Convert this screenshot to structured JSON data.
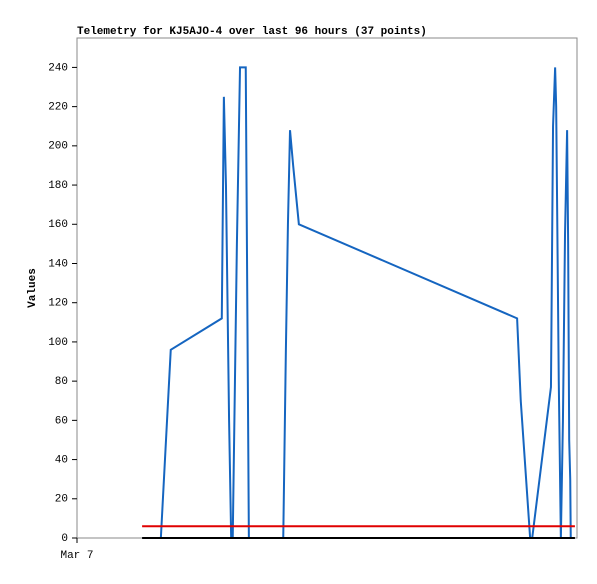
{
  "chart_data": {
    "type": "line",
    "title": "Telemetry for KJ5AJO-4 over last 96 hours (37 points)",
    "y_label": "Values",
    "xlim": [
      0,
      96
    ],
    "xticks": [
      {
        "value": 0,
        "label": "Mar 7"
      }
    ],
    "ylim": [
      0,
      255
    ],
    "yticks": [
      0,
      20,
      40,
      60,
      80,
      100,
      120,
      140,
      160,
      180,
      200,
      220,
      240
    ],
    "series": [
      {
        "color": "#1565c0",
        "x": [
          16.1,
          18.0,
          27.8,
          28.2,
          28.6,
          29.2,
          29.6,
          29.9,
          30.7,
          31.3,
          32.4,
          33.0,
          39.6,
          40.1,
          40.5,
          40.9,
          41.5,
          42.6,
          84.5,
          85.2,
          87.0,
          87.4,
          91.0,
          91.4,
          91.8,
          92.0,
          92.2,
          92.5,
          92.9,
          93.3,
          93.7,
          94.1,
          94.3,
          94.5,
          94.7,
          94.8,
          95.0
        ],
        "values": [
          0,
          96,
          112,
          225,
          180,
          60,
          0,
          0,
          150,
          240,
          240,
          0,
          0,
          95,
          160,
          208,
          190,
          160,
          112,
          70,
          0,
          0,
          77,
          210,
          240,
          220,
          165,
          80,
          0,
          60,
          155,
          208,
          150,
          50,
          30,
          0,
          0
        ]
      },
      {
        "color": "#e00000",
        "x": [
          12.5,
          95.6
        ],
        "values": [
          6,
          6
        ]
      },
      {
        "color": "#000000",
        "x": [
          12.5,
          95.6
        ],
        "values": [
          0,
          0
        ]
      }
    ]
  }
}
